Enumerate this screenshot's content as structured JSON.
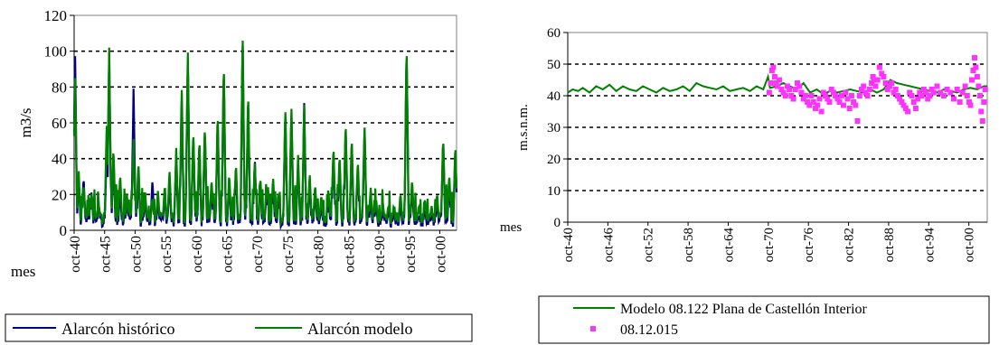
{
  "chart_data": [
    {
      "type": "line",
      "ylabel": "m3/s",
      "xlabel": "mes",
      "ylim": [
        0,
        120
      ],
      "yticks": [
        0,
        20,
        40,
        60,
        80,
        100,
        120
      ],
      "xlim": [
        1940.75,
        2003.5
      ],
      "xtick_labels": [
        "oct-40",
        "oct-45",
        "oct-50",
        "oct-55",
        "oct-60",
        "oct-65",
        "oct-70",
        "oct-75",
        "oct-80",
        "oct-85",
        "oct-90",
        "oct-95",
        "oct-00"
      ],
      "xtick_years": [
        1940.75,
        1945.75,
        1950.75,
        1955.75,
        1960.75,
        1965.75,
        1970.75,
        1975.75,
        1980.75,
        1985.75,
        1990.75,
        1995.75,
        2000.75
      ],
      "grid": "horizontal dashed",
      "legend": "bottom",
      "series": [
        {
          "name": "Alarcón histórico",
          "color": "#000080",
          "peaks": [
            [
              1940.9,
              100
            ],
            [
              1941.5,
              26
            ],
            [
              1942.3,
              28
            ],
            [
              1943.6,
              20
            ],
            [
              1944.8,
              12
            ],
            [
              1946.1,
              44
            ],
            [
              1946.5,
              97
            ],
            [
              1947.2,
              40
            ],
            [
              1948.3,
              20
            ],
            [
              1949.4,
              16
            ],
            [
              1950.5,
              77
            ],
            [
              1951.3,
              30
            ],
            [
              1952.4,
              16
            ],
            [
              1953.6,
              26
            ],
            [
              1954.5,
              15
            ],
            [
              1955.6,
              18
            ],
            [
              1956.4,
              27
            ],
            [
              1957.5,
              40
            ],
            [
              1958.4,
              72
            ],
            [
              1959.4,
              96
            ],
            [
              1960.3,
              52
            ],
            [
              1961.3,
              48
            ],
            [
              1962.2,
              55
            ],
            [
              1963.3,
              22
            ],
            [
              1964.3,
              60
            ],
            [
              1965.3,
              92
            ],
            [
              1966.2,
              25
            ],
            [
              1967.3,
              31
            ],
            [
              1968.4,
              106
            ],
            [
              1969.3,
              72
            ],
            [
              1970.4,
              38
            ],
            [
              1971.3,
              22
            ],
            [
              1972.3,
              18
            ],
            [
              1973.4,
              23
            ],
            [
              1974.3,
              15
            ],
            [
              1975.4,
              64
            ],
            [
              1976.4,
              65
            ],
            [
              1977.5,
              35
            ],
            [
              1978.5,
              69
            ],
            [
              1979.4,
              25
            ],
            [
              1980.3,
              20
            ],
            [
              1981.3,
              13
            ],
            [
              1982.5,
              15
            ],
            [
              1983.3,
              41
            ],
            [
              1984.3,
              37
            ],
            [
              1985.3,
              56
            ],
            [
              1986.3,
              47
            ],
            [
              1987.3,
              33
            ],
            [
              1988.4,
              56
            ],
            [
              1989.4,
              15
            ],
            [
              1990.3,
              12
            ],
            [
              1991.4,
              10
            ],
            [
              1992.3,
              8
            ],
            [
              1993.2,
              7
            ],
            [
              1994.3,
              13
            ],
            [
              1995.3,
              102
            ],
            [
              1996.2,
              22
            ],
            [
              1997.3,
              6
            ],
            [
              1998.3,
              10
            ],
            [
              1999.4,
              7
            ],
            [
              2000.3,
              14
            ],
            [
              2001.3,
              50
            ],
            [
              2002.3,
              25
            ],
            [
              2003.3,
              45
            ]
          ]
        },
        {
          "name": "Alarcón modelo",
          "color": "#008000",
          "peaks": [
            [
              1940.9,
              85
            ],
            [
              1941.5,
              29
            ],
            [
              1942.3,
              22
            ],
            [
              1943.6,
              17
            ],
            [
              1944.8,
              10
            ],
            [
              1946.1,
              57
            ],
            [
              1946.5,
              98
            ],
            [
              1947.2,
              43
            ],
            [
              1948.3,
              28
            ],
            [
              1949.4,
              17
            ],
            [
              1950.5,
              47
            ],
            [
              1951.3,
              35
            ],
            [
              1952.4,
              18
            ],
            [
              1953.6,
              14
            ],
            [
              1954.5,
              18
            ],
            [
              1955.6,
              20
            ],
            [
              1956.4,
              30
            ],
            [
              1957.5,
              42
            ],
            [
              1958.4,
              78
            ],
            [
              1959.4,
              100
            ],
            [
              1960.3,
              53
            ],
            [
              1961.3,
              48
            ],
            [
              1962.2,
              56
            ],
            [
              1963.3,
              25
            ],
            [
              1964.3,
              63
            ],
            [
              1965.3,
              92
            ],
            [
              1966.2,
              28
            ],
            [
              1967.3,
              34
            ],
            [
              1968.4,
              107
            ],
            [
              1969.3,
              75
            ],
            [
              1970.4,
              35
            ],
            [
              1971.3,
              26
            ],
            [
              1972.3,
              20
            ],
            [
              1973.4,
              26
            ],
            [
              1974.3,
              18
            ],
            [
              1975.4,
              65
            ],
            [
              1976.4,
              67
            ],
            [
              1977.5,
              38
            ],
            [
              1978.5,
              66
            ],
            [
              1979.4,
              28
            ],
            [
              1980.3,
              22
            ],
            [
              1981.3,
              16
            ],
            [
              1982.5,
              17
            ],
            [
              1983.3,
              44
            ],
            [
              1984.3,
              39
            ],
            [
              1985.3,
              58
            ],
            [
              1986.3,
              49
            ],
            [
              1987.3,
              36
            ],
            [
              1988.4,
              56
            ],
            [
              1989.4,
              19
            ],
            [
              1990.3,
              14
            ],
            [
              1991.4,
              12
            ],
            [
              1992.3,
              10
            ],
            [
              1993.2,
              10
            ],
            [
              1994.3,
              17
            ],
            [
              1995.3,
              103
            ],
            [
              1996.2,
              25
            ],
            [
              1997.3,
              10
            ],
            [
              1998.3,
              14
            ],
            [
              1999.4,
              10
            ],
            [
              2000.3,
              17
            ],
            [
              2001.3,
              49
            ],
            [
              2002.3,
              28
            ],
            [
              2003.3,
              45
            ]
          ]
        }
      ]
    },
    {
      "type": "line",
      "ylabel": "m.s.n.m.",
      "xlabel": "mes",
      "ylim": [
        0,
        60
      ],
      "yticks": [
        0,
        10,
        20,
        30,
        40,
        50,
        60
      ],
      "xlim": [
        1940.75,
        2003.5
      ],
      "xtick_labels": [
        "oct-40",
        "oct-46",
        "oct-52",
        "oct-58",
        "oct-64",
        "oct-70",
        "oct-76",
        "oct-82",
        "oct-88",
        "oct-94",
        "oct-00"
      ],
      "xtick_years": [
        1940.75,
        1946.75,
        1952.75,
        1958.75,
        1964.75,
        1970.75,
        1976.75,
        1982.75,
        1988.75,
        1994.75,
        2000.75
      ],
      "grid": "horizontal dashed",
      "legend": "bottom",
      "series": [
        {
          "name": "Modelo 08.122 Plana de Castellón Interior",
          "color": "#008000",
          "x": [
            1940.75,
            1941.5,
            1942.3,
            1943.0,
            1944.0,
            1945.0,
            1946.0,
            1947.0,
            1948.0,
            1949.0,
            1950.0,
            1951.0,
            1952.0,
            1953.0,
            1954.0,
            1955.0,
            1956.0,
            1957.0,
            1958.0,
            1959.0,
            1960.0,
            1961.0,
            1962.0,
            1963.0,
            1964.0,
            1965.0,
            1966.0,
            1967.0,
            1968.0,
            1969.0,
            1970.0,
            1970.7,
            1971.0,
            1972.0,
            1973.0,
            1974.0,
            1975.0,
            1976.0,
            1977.0,
            1978.0,
            1979.0,
            1980.0,
            1981.0,
            1982.0,
            1983.0,
            1984.0,
            1985.0,
            1986.0,
            1987.0,
            1988.0,
            1989.0,
            1990.0,
            1991.0,
            1992.0,
            1993.0,
            1994.0,
            1995.0,
            1996.0,
            1997.0,
            1998.0,
            1999.0,
            2000.0,
            2001.0,
            2002.0,
            2003.0,
            2003.5
          ],
          "y": [
            41,
            42,
            41.5,
            42.5,
            41,
            43,
            42,
            43.5,
            41.5,
            43,
            42,
            41.5,
            43,
            42,
            41,
            42.5,
            41.5,
            42,
            43,
            41.5,
            44,
            43,
            42.5,
            42,
            43,
            41.5,
            42,
            42.5,
            41.5,
            43,
            42,
            46,
            42.5,
            43,
            44,
            43,
            42,
            44,
            41,
            42,
            40.5,
            41.5,
            41,
            41.5,
            42,
            41.5,
            41,
            42,
            41,
            42,
            45,
            44,
            43.5,
            43,
            42.5,
            42,
            41.5,
            41,
            42,
            41.5,
            41,
            42,
            42.5,
            42,
            43,
            43
          ]
        },
        {
          "name": "08.12.015",
          "color": "#ff33ff",
          "x": [
            1970.9,
            1971.1,
            1971.3,
            1971.5,
            1971.7,
            1971.9,
            1972.1,
            1972.4,
            1972.7,
            1973.0,
            1973.3,
            1973.6,
            1973.9,
            1974.2,
            1974.5,
            1974.8,
            1975.1,
            1975.4,
            1975.7,
            1976.0,
            1976.3,
            1976.6,
            1976.9,
            1977.2,
            1977.5,
            1977.8,
            1978.1,
            1978.4,
            1978.7,
            1979.0,
            1979.3,
            1979.6,
            1979.9,
            1980.2,
            1980.5,
            1980.8,
            1981.1,
            1981.4,
            1981.7,
            1982.0,
            1982.3,
            1982.6,
            1982.9,
            1983.2,
            1983.5,
            1983.8,
            1984.1,
            1984.4,
            1984.7,
            1985.0,
            1985.3,
            1985.6,
            1985.9,
            1986.2,
            1986.4,
            1986.6,
            1986.8,
            1987.1,
            1987.4,
            1987.7,
            1988.0,
            1988.3,
            1988.6,
            1988.9,
            1989.2,
            1989.5,
            1989.8,
            1990.1,
            1990.4,
            1990.7,
            1991.0,
            1991.3,
            1991.6,
            1991.9,
            1992.2,
            1992.5,
            1992.8,
            1993.1,
            1993.4,
            1993.7,
            1994.0,
            1994.3,
            1994.6,
            1994.9,
            1995.2,
            1995.5,
            1996.0,
            1996.5,
            1997.0,
            1997.5,
            1998.0,
            1998.5,
            1999.0,
            1999.4,
            1999.8,
            2000.2,
            2000.5,
            2000.8,
            2001.0,
            2001.2,
            2001.4,
            2001.6,
            2001.8,
            2002.0,
            2002.2,
            2002.4,
            2002.6,
            2002.8,
            2003.0,
            2003.2
          ],
          "y": [
            41,
            44,
            48,
            49,
            46,
            44,
            43,
            45,
            42,
            41,
            40,
            43,
            42,
            40,
            39,
            42,
            44,
            43,
            41,
            39,
            40,
            38,
            37,
            40,
            38,
            36,
            37,
            39,
            35,
            41,
            40,
            39,
            38,
            42,
            41,
            40,
            39,
            38,
            40,
            37,
            41,
            39,
            36,
            40,
            38,
            37,
            32,
            40,
            42,
            43,
            41,
            40,
            42,
            44,
            46,
            45,
            43,
            45,
            49,
            47,
            46,
            44,
            42,
            43,
            44,
            41,
            42,
            40,
            39,
            38,
            37,
            36,
            35,
            41,
            40,
            38,
            36,
            39,
            41,
            40,
            42,
            41,
            39,
            40,
            42,
            41,
            43,
            41,
            40,
            42,
            41,
            39,
            42,
            38,
            41,
            43,
            40,
            38,
            37,
            45,
            48,
            52,
            49,
            46,
            43,
            40,
            35,
            32,
            38,
            42
          ]
        }
      ]
    }
  ]
}
